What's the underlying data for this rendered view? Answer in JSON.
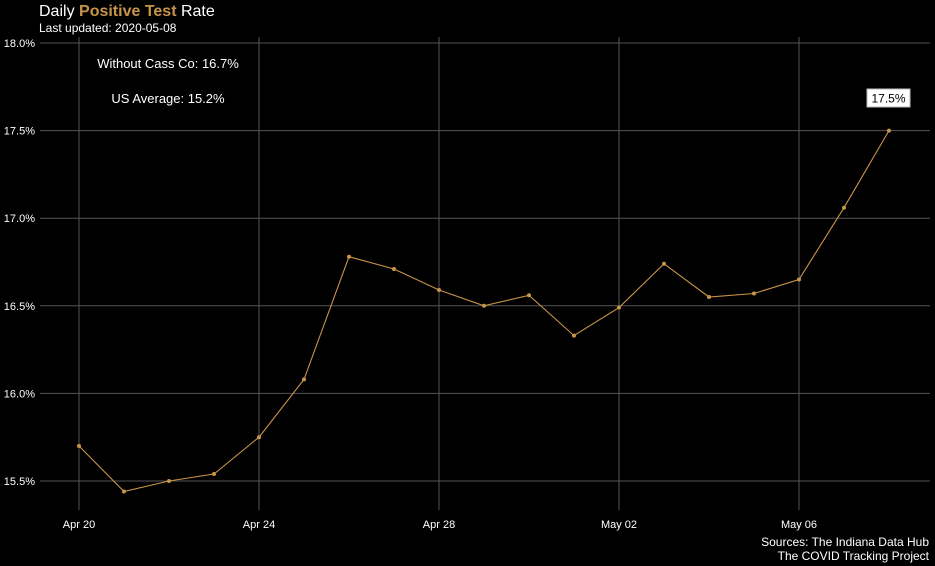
{
  "title": {
    "pre": "Daily ",
    "accent": "Positive Test",
    "post": " Rate"
  },
  "subtitle": "Last updated: 2020-05-08",
  "caption": {
    "line1": "Sources: The Indiana Data Hub",
    "line2": "The COVID Tracking Project"
  },
  "colors": {
    "line": "#c8944a",
    "grid": "#555555",
    "background": "#000000",
    "title_accent": "#c8944a"
  },
  "chart_data": {
    "type": "line",
    "x": [
      "2020-04-20",
      "2020-04-21",
      "2020-04-22",
      "2020-04-23",
      "2020-04-24",
      "2020-04-25",
      "2020-04-26",
      "2020-04-27",
      "2020-04-28",
      "2020-04-29",
      "2020-04-30",
      "2020-05-01",
      "2020-05-02",
      "2020-05-03",
      "2020-05-04",
      "2020-05-05",
      "2020-05-06",
      "2020-05-07",
      "2020-05-08"
    ],
    "values": [
      15.7,
      15.44,
      15.5,
      15.54,
      15.75,
      16.08,
      16.78,
      16.71,
      16.59,
      16.5,
      16.56,
      16.33,
      16.49,
      16.74,
      16.55,
      16.57,
      16.65,
      17.06,
      17.5
    ],
    "x_ticks": [
      {
        "date": "2020-04-20",
        "label": "Apr 20"
      },
      {
        "date": "2020-04-24",
        "label": "Apr 24"
      },
      {
        "date": "2020-04-28",
        "label": "Apr 28"
      },
      {
        "date": "2020-05-02",
        "label": "May 02"
      },
      {
        "date": "2020-05-06",
        "label": "May 06"
      }
    ],
    "y_ticks": [
      {
        "value": 15.5,
        "label": "15.5%"
      },
      {
        "value": 16.0,
        "label": "16.0%"
      },
      {
        "value": 16.5,
        "label": "16.5%"
      },
      {
        "value": 17.0,
        "label": "17.0%"
      },
      {
        "value": 17.5,
        "label": "17.5%"
      },
      {
        "value": 18.0,
        "label": "18.0%"
      }
    ],
    "ylim": [
      15.4,
      18.0
    ],
    "grid": true,
    "annotations": {
      "without_cass": "Without Cass Co: 16.7%",
      "us_average": "US Average: 15.2%",
      "last_value_label": "17.5%"
    }
  }
}
